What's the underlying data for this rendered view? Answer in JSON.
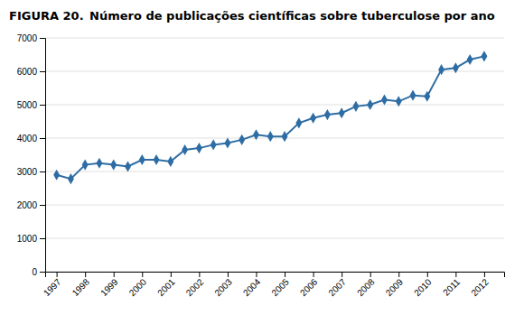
{
  "chart_data": {
    "type": "line",
    "title": "FIGURA 20.",
    "subtitle": "Número de publicações científicas sobre tuberculose por ano",
    "x": [
      1997.0,
      1997.5,
      1998.0,
      1998.5,
      1999.0,
      1999.5,
      2000.0,
      2000.5,
      2001.0,
      2001.5,
      2002.0,
      2002.5,
      2003.0,
      2003.5,
      2004.0,
      2004.5,
      2005.0,
      2005.5,
      2006.0,
      2006.5,
      2007.0,
      2007.5,
      2008.0,
      2008.5,
      2009.0,
      2009.5,
      2010.0,
      2010.5,
      2011.0,
      2011.5,
      2012.0
    ],
    "values": [
      2900,
      2780,
      3200,
      3250,
      3200,
      3150,
      3350,
      3350,
      3300,
      3650,
      3700,
      3800,
      3850,
      3950,
      4100,
      4050,
      4050,
      4450,
      4600,
      4700,
      4750,
      4950,
      5000,
      5150,
      5100,
      5280,
      5250,
      6050,
      6100,
      6350,
      6450
    ],
    "color": "#2E6DA4",
    "marker": "diamond",
    "xlim": [
      1996.6,
      2012.7
    ],
    "xticks": [
      1997,
      1998,
      1999,
      2000,
      2001,
      2002,
      2003,
      2004,
      2005,
      2006,
      2007,
      2008,
      2009,
      2010,
      2011,
      2012
    ],
    "ylim": [
      0,
      7000
    ],
    "yticks": [
      0,
      1000,
      2000,
      3000,
      4000,
      5000,
      6000,
      7000
    ],
    "grid": true
  }
}
